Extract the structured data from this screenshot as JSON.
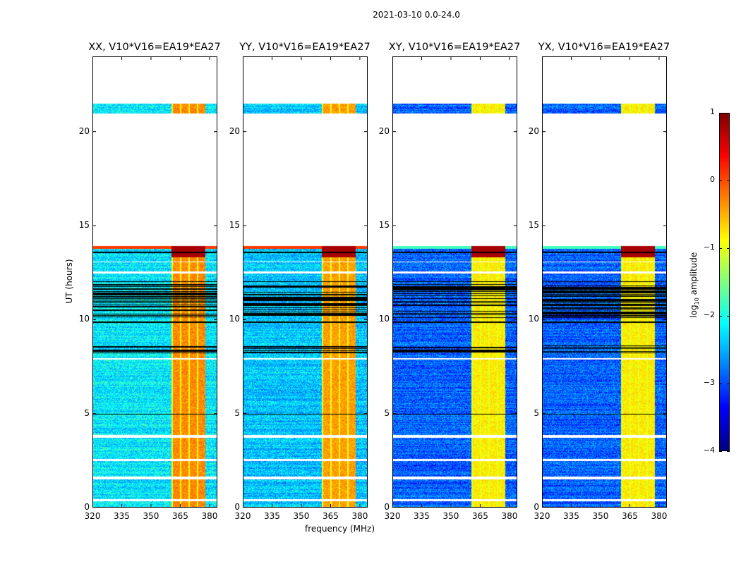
{
  "chart_data": {
    "type": "heatmap",
    "suptitle": "2021-03-10 0.0-24.0",
    "xlabel": "frequency (MHz)",
    "ylabel": "UT (hours)",
    "xlim": [
      320,
      384
    ],
    "ylim": [
      0,
      24
    ],
    "xticks": [
      "320",
      "335",
      "350",
      "365",
      "380"
    ],
    "xtick_values": [
      320,
      335,
      350,
      365,
      380
    ],
    "yticks": [
      "0",
      "5",
      "10",
      "15",
      "20"
    ],
    "ytick_values": [
      0,
      5,
      10,
      15,
      20
    ],
    "colormap": "jet",
    "colorbar": {
      "label": "log10 amplitude",
      "label_main": "log",
      "label_sub": "10",
      "label_rest": " amplitude",
      "range": [
        -4,
        1
      ],
      "ticks": [
        "1",
        "0",
        "−1",
        "−2",
        "−3",
        "−4"
      ],
      "tick_values": [
        1,
        0,
        -1,
        -2,
        -3,
        -4
      ]
    },
    "coverage_hours": [
      [
        0,
        13.9
      ],
      [
        21.0,
        21.5
      ]
    ],
    "blank_gaps_hours": [
      [
        0.3,
        0.4
      ],
      [
        1.45,
        1.62
      ],
      [
        2.45,
        2.55
      ],
      [
        3.7,
        3.85
      ],
      [
        7.85,
        7.95
      ],
      [
        12.45,
        12.55
      ],
      [
        13.05,
        13.1
      ]
    ],
    "flagged_rows_hours": [
      [
        4.93,
        4.98
      ],
      [
        9.8,
        9.88
      ],
      [
        12.0,
        12.05
      ],
      [
        13.55,
        13.6
      ]
    ],
    "dense_flag_ranges_hours": [
      [
        8.2,
        8.6
      ],
      [
        10.1,
        11.9
      ]
    ],
    "bright_band_mhz": [
      360.5,
      378
    ],
    "panels": [
      {
        "title": "XX, V10*V16=EA19*EA27",
        "base_level": -2.2,
        "band_level": -0.3
      },
      {
        "title": "YY, V10*V16=EA19*EA27",
        "base_level": -2.4,
        "band_level": -0.4
      },
      {
        "title": "XY, V10*V16=EA19*EA27",
        "base_level": -2.9,
        "band_level": -0.8
      },
      {
        "title": "YX, V10*V16=EA19*EA27",
        "base_level": -2.9,
        "band_level": -0.8
      }
    ]
  }
}
